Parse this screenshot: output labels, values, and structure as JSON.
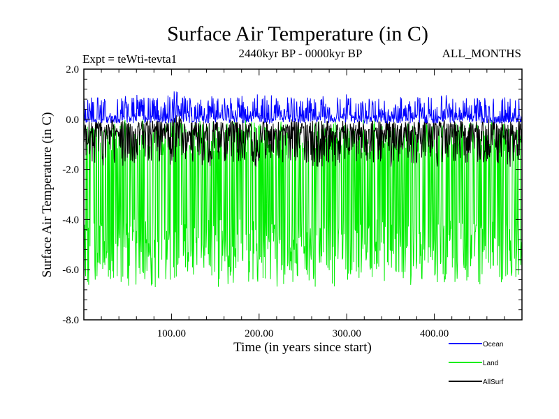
{
  "chart_data": {
    "type": "line",
    "title": "Surface Air Temperature (in C)",
    "subtitle": "2440kyr BP - 0000kyr BP",
    "expt_label": "Expt = teWti-tevta1",
    "months_label": "ALL_MONTHS",
    "xlabel": "Time (in years since start)",
    "ylabel": "Surface Air Temperature (in C)",
    "xlim": [
      0,
      500
    ],
    "ylim": [
      -8,
      2
    ],
    "xticks": [
      100,
      200,
      300,
      400
    ],
    "xtick_labels": [
      "100.00",
      "200.00",
      "300.00",
      "400.00"
    ],
    "yticks": [
      2,
      0,
      -2,
      -4,
      -6,
      -8
    ],
    "ytick_labels": [
      "2.0",
      "0.0",
      "-2.0",
      "-4.0",
      "-6.0",
      "-8.0"
    ],
    "series": [
      {
        "name": "Land",
        "color": "#00ee00",
        "mean": -3.0,
        "high_mean": -0.8,
        "high_min": 0.0,
        "low_mean": -5.2,
        "low_min": -6.7
      },
      {
        "name": "AllSurf",
        "color": "#000000",
        "mean": -0.7,
        "high_mean": -0.3,
        "high_min": 0.0,
        "low_mean": -1.1,
        "low_min": -1.9
      },
      {
        "name": "Ocean",
        "color": "#0000ff",
        "mean": 0.2,
        "high_mean": 0.4,
        "high_min": 1.0,
        "low_mean": 0.0,
        "low_min": -0.2
      }
    ],
    "legend": [
      {
        "label": "Ocean",
        "color": "#0000ff"
      },
      {
        "label": "Land",
        "color": "#00ee00"
      },
      {
        "label": "AllSurf",
        "color": "#000000"
      }
    ]
  }
}
